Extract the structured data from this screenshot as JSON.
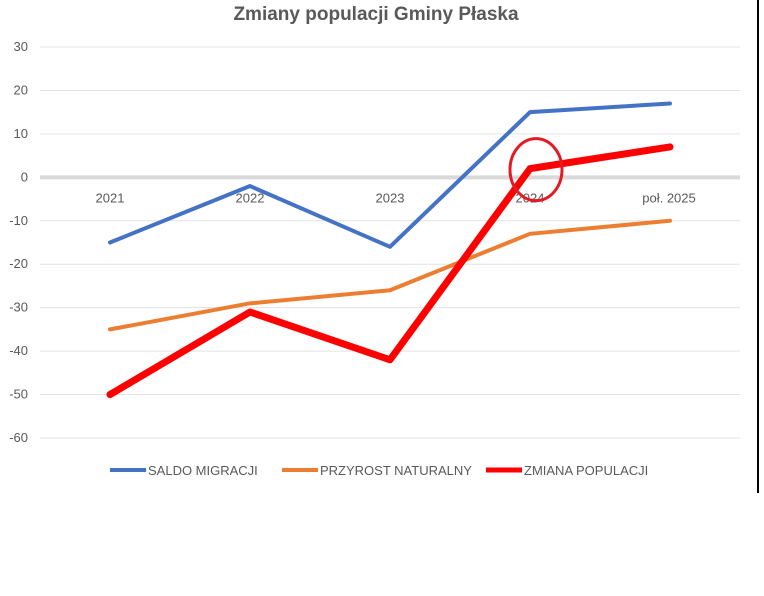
{
  "chart_data": {
    "type": "line",
    "title": "Zmiany populacji Gminy Płaska",
    "categories": [
      "2021",
      "2022",
      "2023",
      "2024",
      "poł. 2025"
    ],
    "ylim": [
      -60,
      30
    ],
    "yticks": [
      30,
      20,
      10,
      0,
      -10,
      -20,
      -30,
      -40,
      -50,
      -60
    ],
    "grid": true,
    "legend_position": "bottom",
    "series": [
      {
        "name": "SALDO MIGRACJI",
        "color": "#4472C4",
        "values": [
          -15,
          -2,
          -16,
          15,
          17
        ]
      },
      {
        "name": "PRZYROST NATURALNY",
        "color": "#ED7D31",
        "values": [
          -35,
          -29,
          -26,
          -13,
          -10
        ]
      },
      {
        "name": "ZMIANA POPULACJI",
        "color": "#FF0000",
        "values": [
          -50,
          -31,
          -42,
          2,
          7
        ]
      }
    ],
    "annotation": {
      "type": "circle",
      "color": "#E31B23",
      "category": "2024",
      "value": 2
    }
  }
}
